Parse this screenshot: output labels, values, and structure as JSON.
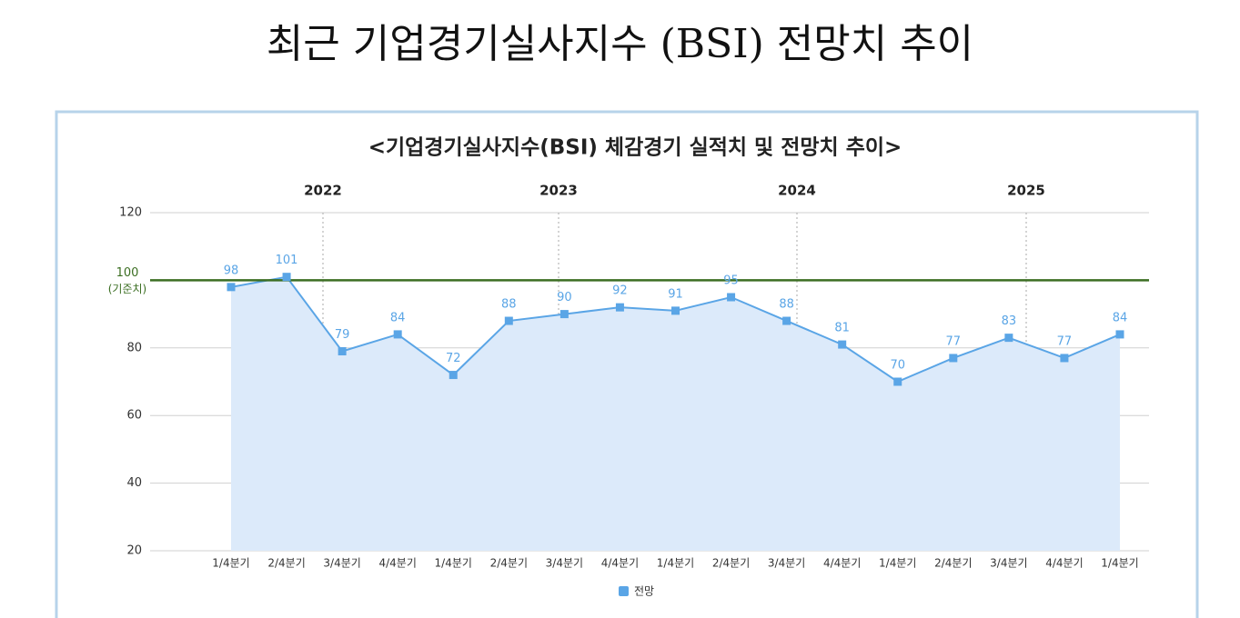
{
  "header": {
    "title": "최근 기업경기실사지수 (BSI) 전망치 추이"
  },
  "chart_data": {
    "type": "line",
    "title": "<기업경기실사지수(BSI) 체감경기 실적치 및 전망치 추이>",
    "annotations": [
      "2022",
      "2023",
      "2024",
      "2025"
    ],
    "categories": [
      "1/4분기",
      "2/4분기",
      "3/4분기",
      "4/4분기",
      "1/4분기",
      "2/4분기",
      "3/4분기",
      "4/4분기",
      "1/4분기",
      "2/4분기",
      "3/4분기",
      "4/4분기",
      "1/4분기",
      "2/4분기",
      "3/4분기",
      "4/4분기",
      "1/4분기"
    ],
    "series": [
      {
        "name": "전망",
        "color": "#5aa5e6",
        "values": [
          98,
          101,
          79,
          84,
          72,
          88,
          90,
          92,
          91,
          95,
          88,
          81,
          70,
          77,
          83,
          77,
          84
        ]
      }
    ],
    "ylim": [
      20,
      120
    ],
    "yticks": [
      20,
      40,
      60,
      80,
      100,
      120
    ],
    "grid": true,
    "reference_line": {
      "value": 100,
      "label": "(기준치)",
      "color": "#3b6e22"
    },
    "area_color": "#dceafa"
  }
}
